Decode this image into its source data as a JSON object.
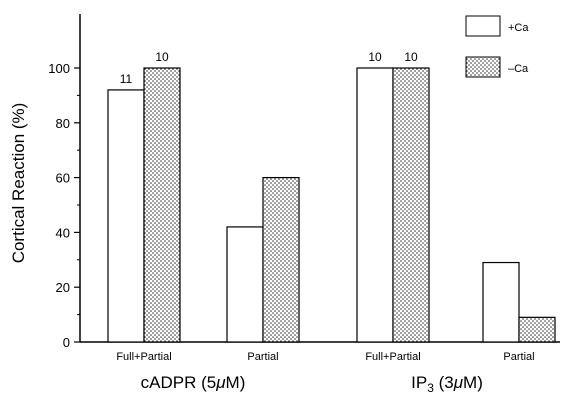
{
  "chart_data": {
    "type": "bar",
    "ylabel": "Cortical Reaction (%)",
    "ylim": [
      0,
      100
    ],
    "yticks": [
      "0",
      "20",
      "40",
      "60",
      "80",
      "100"
    ],
    "legend_position": "top-right",
    "series": [
      {
        "name": "+Ca",
        "fill": "#ffffff"
      },
      {
        "name": "–Ca",
        "fill": "dotted"
      }
    ],
    "groups": [
      {
        "label_main": "cADPR (5",
        "label_mu": "μ",
        "label_end": "M)",
        "label_sub": "",
        "categories": [
          "Full+Partial",
          "Partial"
        ],
        "values": [
          [
            92,
            100
          ],
          [
            42,
            60
          ]
        ],
        "n_labels": [
          [
            "11",
            "10"
          ],
          [
            "",
            ""
          ]
        ]
      },
      {
        "label_main": "IP",
        "label_mu": "μ",
        "label_end": "M)",
        "label_sub": "3",
        "label_open": " (3",
        "categories": [
          "Full+Partial",
          "Partial"
        ],
        "values": [
          [
            100,
            100
          ],
          [
            29,
            9
          ]
        ],
        "n_labels": [
          [
            "10",
            "10"
          ],
          [
            "",
            ""
          ]
        ]
      }
    ]
  }
}
